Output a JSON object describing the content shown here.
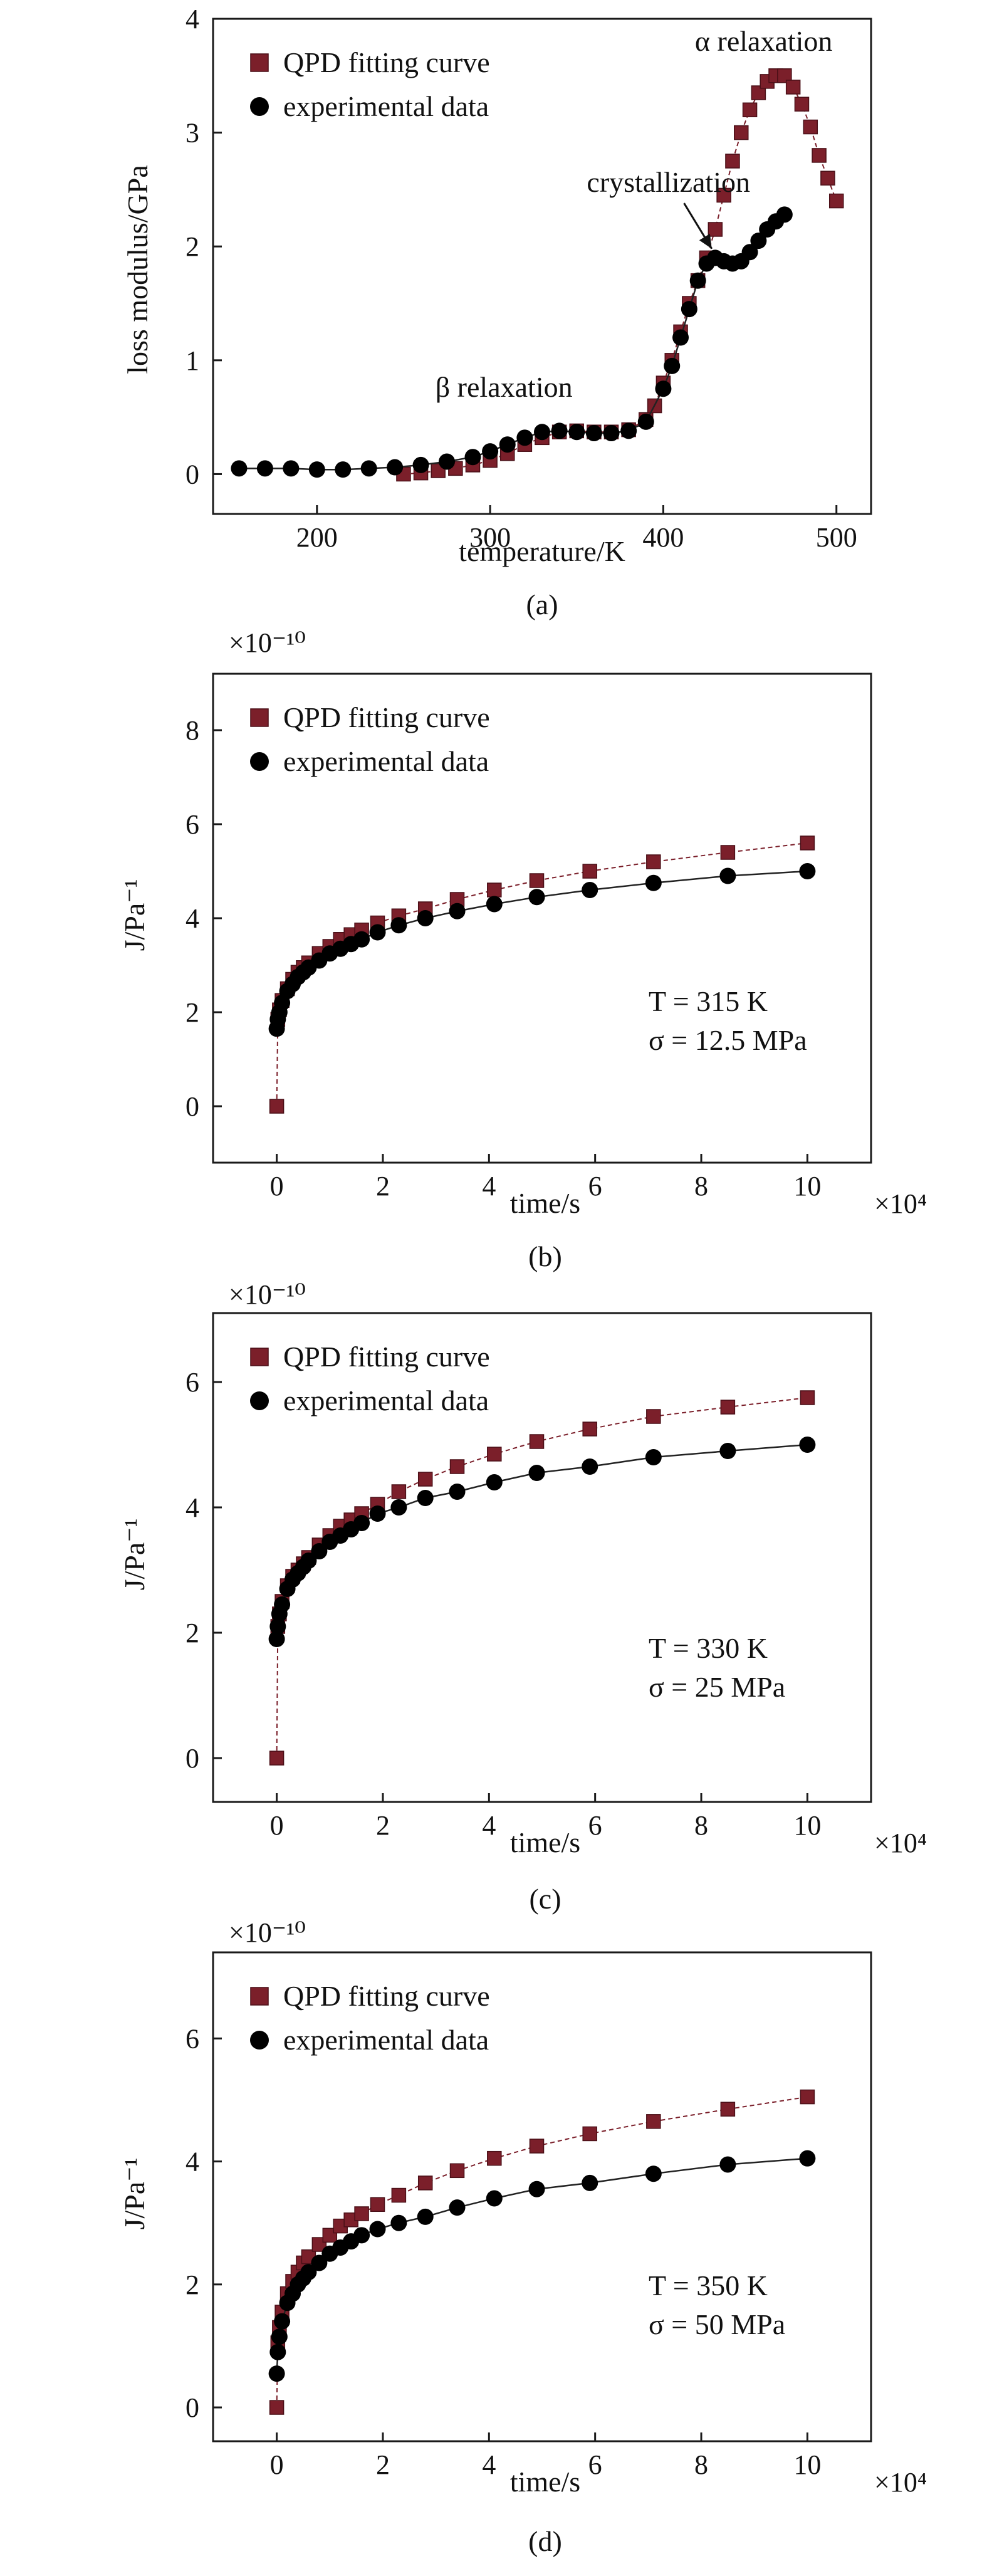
{
  "chart_data": [
    {
      "type": "scatter",
      "panel": "(a)",
      "xlabel": "temperature/K",
      "ylabel": "loss modulus/GPa",
      "xlim": [
        140,
        520
      ],
      "ylim": [
        -0.35,
        4
      ],
      "xticks": [
        200,
        300,
        400,
        500
      ],
      "yticks": [
        0,
        1,
        2,
        3,
        4
      ],
      "legend_position": "top-left",
      "series": [
        {
          "name": "QPD fitting curve",
          "marker": "square",
          "color": "#7b1f2a",
          "x": [
            250,
            260,
            270,
            280,
            290,
            300,
            310,
            320,
            330,
            340,
            350,
            360,
            370,
            380,
            390,
            395,
            400,
            405,
            410,
            415,
            420,
            425,
            430,
            435,
            440,
            445,
            450,
            455,
            460,
            465,
            470,
            475,
            480,
            485,
            490,
            495,
            500
          ],
          "y": [
            0.0,
            0.01,
            0.03,
            0.05,
            0.08,
            0.12,
            0.18,
            0.26,
            0.32,
            0.37,
            0.38,
            0.37,
            0.37,
            0.39,
            0.48,
            0.6,
            0.8,
            1.0,
            1.25,
            1.5,
            1.7,
            1.9,
            2.15,
            2.45,
            2.75,
            3.0,
            3.2,
            3.35,
            3.45,
            3.5,
            3.5,
            3.4,
            3.25,
            3.05,
            2.8,
            2.6,
            2.4
          ]
        },
        {
          "name": "experimental data",
          "marker": "circle",
          "color": "#000000",
          "x": [
            155,
            170,
            185,
            200,
            215,
            230,
            245,
            260,
            275,
            290,
            300,
            310,
            320,
            330,
            340,
            350,
            360,
            370,
            380,
            390,
            400,
            405,
            410,
            415,
            420,
            425,
            430,
            435,
            440,
            445,
            450,
            455,
            460,
            465,
            470
          ],
          "y": [
            0.05,
            0.05,
            0.05,
            0.04,
            0.04,
            0.05,
            0.06,
            0.08,
            0.11,
            0.15,
            0.2,
            0.26,
            0.32,
            0.37,
            0.38,
            0.37,
            0.36,
            0.36,
            0.38,
            0.46,
            0.75,
            0.95,
            1.2,
            1.45,
            1.7,
            1.85,
            1.9,
            1.87,
            1.85,
            1.87,
            1.95,
            2.05,
            2.15,
            2.22,
            2.28
          ]
        }
      ],
      "annotations": [
        {
          "text": "α relaxation",
          "x": 458,
          "y": 3.72
        },
        {
          "text": "crystallization",
          "x": 403,
          "y": 2.48
        },
        {
          "text": "β relaxation",
          "x": 308,
          "y": 0.68
        }
      ],
      "caption": "(a)"
    },
    {
      "type": "scatter",
      "panel": "(b)",
      "xlabel": "time/s",
      "ylabel": "J/Pa⁻¹",
      "x_multiplier": "×10⁴",
      "y_multiplier": "×10⁻¹⁰",
      "xlim": [
        -1.2,
        11.2
      ],
      "ylim": [
        -1.2,
        9.2
      ],
      "xticks": [
        0,
        2,
        4,
        6,
        8,
        10
      ],
      "yticks": [
        0,
        2,
        4,
        6,
        8
      ],
      "legend_position": "top-left",
      "conditions": [
        "T = 315 K",
        "σ = 12.5 MPa"
      ],
      "series": [
        {
          "name": "QPD fitting curve",
          "marker": "square",
          "color": "#7b1f2a",
          "x": [
            0,
            0.02,
            0.05,
            0.1,
            0.2,
            0.3,
            0.4,
            0.5,
            0.6,
            0.8,
            1.0,
            1.2,
            1.4,
            1.6,
            1.9,
            2.3,
            2.8,
            3.4,
            4.1,
            4.9,
            5.9,
            7.1,
            8.5,
            10.0
          ],
          "y": [
            0,
            1.85,
            2.05,
            2.25,
            2.5,
            2.7,
            2.85,
            2.95,
            3.05,
            3.25,
            3.4,
            3.55,
            3.65,
            3.75,
            3.9,
            4.05,
            4.2,
            4.4,
            4.6,
            4.8,
            5.0,
            5.2,
            5.4,
            5.6
          ]
        },
        {
          "name": "experimental data",
          "marker": "circle",
          "color": "#000000",
          "x": [
            0,
            0.02,
            0.05,
            0.1,
            0.2,
            0.3,
            0.4,
            0.5,
            0.6,
            0.8,
            1.0,
            1.2,
            1.4,
            1.6,
            1.9,
            2.3,
            2.8,
            3.4,
            4.1,
            4.9,
            5.9,
            7.1,
            8.5,
            10.0
          ],
          "y": [
            1.65,
            1.85,
            2.0,
            2.2,
            2.45,
            2.6,
            2.75,
            2.85,
            2.95,
            3.1,
            3.25,
            3.35,
            3.45,
            3.55,
            3.7,
            3.85,
            4.0,
            4.15,
            4.3,
            4.45,
            4.6,
            4.75,
            4.9,
            5.0
          ]
        }
      ],
      "caption": "(b)"
    },
    {
      "type": "scatter",
      "panel": "(c)",
      "xlabel": "time/s",
      "ylabel": "J/Pa⁻¹",
      "x_multiplier": "×10⁴",
      "y_multiplier": "×10⁻¹⁰",
      "xlim": [
        -1.2,
        11.2
      ],
      "ylim": [
        -0.7,
        7.1
      ],
      "xticks": [
        0,
        2,
        4,
        6,
        8,
        10
      ],
      "yticks": [
        0,
        2,
        4,
        6
      ],
      "legend_position": "top-left",
      "conditions": [
        "T = 330 K",
        "σ = 25 MPa"
      ],
      "series": [
        {
          "name": "QPD fitting curve",
          "marker": "square",
          "color": "#7b1f2a",
          "x": [
            0,
            0.02,
            0.05,
            0.1,
            0.2,
            0.3,
            0.4,
            0.5,
            0.6,
            0.8,
            1.0,
            1.2,
            1.4,
            1.6,
            1.9,
            2.3,
            2.8,
            3.4,
            4.1,
            4.9,
            5.9,
            7.1,
            8.5,
            10.0
          ],
          "y": [
            0,
            2.1,
            2.3,
            2.5,
            2.75,
            2.9,
            3.0,
            3.1,
            3.2,
            3.4,
            3.55,
            3.7,
            3.8,
            3.9,
            4.05,
            4.25,
            4.45,
            4.65,
            4.85,
            5.05,
            5.25,
            5.45,
            5.6,
            5.75
          ]
        },
        {
          "name": "experimental data",
          "marker": "circle",
          "color": "#000000",
          "x": [
            0,
            0.02,
            0.05,
            0.1,
            0.2,
            0.3,
            0.4,
            0.5,
            0.6,
            0.8,
            1.0,
            1.2,
            1.4,
            1.6,
            1.9,
            2.3,
            2.8,
            3.4,
            4.1,
            4.9,
            5.9,
            7.1,
            8.5,
            10.0
          ],
          "y": [
            1.9,
            2.1,
            2.3,
            2.45,
            2.7,
            2.85,
            2.95,
            3.05,
            3.15,
            3.3,
            3.45,
            3.55,
            3.65,
            3.75,
            3.9,
            4.0,
            4.15,
            4.25,
            4.4,
            4.55,
            4.65,
            4.8,
            4.9,
            5.0
          ]
        }
      ],
      "caption": "(c)"
    },
    {
      "type": "scatter",
      "panel": "(d)",
      "xlabel": "time/s",
      "ylabel": "J/Pa⁻¹",
      "x_multiplier": "×10⁴",
      "y_multiplier": "×10⁻¹⁰",
      "xlim": [
        -1.2,
        11.2
      ],
      "ylim": [
        -0.55,
        7.4
      ],
      "xticks": [
        0,
        2,
        4,
        6,
        8,
        10
      ],
      "yticks": [
        0,
        2,
        4,
        6
      ],
      "legend_position": "top-left",
      "conditions": [
        "T = 350 K",
        "σ = 50 MPa"
      ],
      "series": [
        {
          "name": "QPD fitting curve",
          "marker": "square",
          "color": "#7b1f2a",
          "x": [
            0,
            0.02,
            0.05,
            0.1,
            0.2,
            0.3,
            0.4,
            0.5,
            0.6,
            0.8,
            1.0,
            1.2,
            1.4,
            1.6,
            1.9,
            2.3,
            2.8,
            3.4,
            4.1,
            4.9,
            5.9,
            7.1,
            8.5,
            10.0
          ],
          "y": [
            0,
            1.05,
            1.3,
            1.55,
            1.85,
            2.05,
            2.2,
            2.35,
            2.45,
            2.65,
            2.8,
            2.95,
            3.05,
            3.15,
            3.3,
            3.45,
            3.65,
            3.85,
            4.05,
            4.25,
            4.45,
            4.65,
            4.85,
            5.05
          ]
        },
        {
          "name": "experimental data",
          "marker": "circle",
          "color": "#000000",
          "x": [
            0,
            0.02,
            0.05,
            0.1,
            0.2,
            0.3,
            0.4,
            0.5,
            0.6,
            0.8,
            1.0,
            1.2,
            1.4,
            1.6,
            1.9,
            2.3,
            2.8,
            3.4,
            4.1,
            4.9,
            5.9,
            7.1,
            8.5,
            10.0
          ],
          "y": [
            0.55,
            0.9,
            1.15,
            1.4,
            1.7,
            1.85,
            2.0,
            2.1,
            2.2,
            2.35,
            2.5,
            2.6,
            2.7,
            2.8,
            2.9,
            3.0,
            3.1,
            3.25,
            3.4,
            3.55,
            3.65,
            3.8,
            3.95,
            4.05
          ]
        }
      ],
      "caption": "(d)"
    }
  ]
}
